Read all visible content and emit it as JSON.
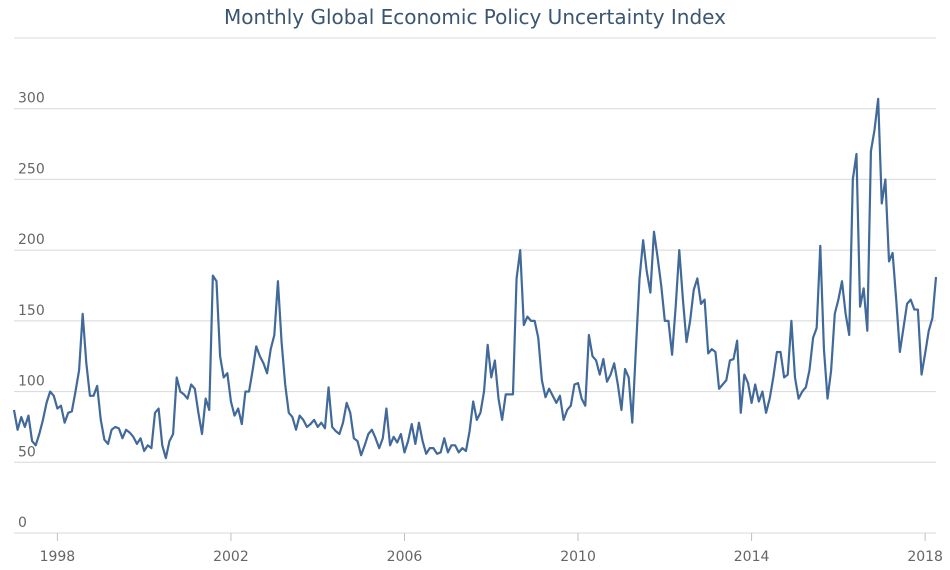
{
  "chart_data": {
    "type": "line",
    "title": "Monthly Global Economic Policy Uncertainty Index",
    "x": [
      1997,
      1997.083,
      1997.167,
      1997.25,
      1997.333,
      1997.417,
      1997.5,
      1997.583,
      1997.667,
      1997.75,
      1997.833,
      1997.917,
      1998,
      1998.083,
      1998.167,
      1998.25,
      1998.333,
      1998.417,
      1998.5,
      1998.583,
      1998.667,
      1998.75,
      1998.833,
      1998.917,
      1999,
      1999.083,
      1999.167,
      1999.25,
      1999.333,
      1999.417,
      1999.5,
      1999.583,
      1999.667,
      1999.75,
      1999.833,
      1999.917,
      2000,
      2000.083,
      2000.167,
      2000.25,
      2000.333,
      2000.417,
      2000.5,
      2000.583,
      2000.667,
      2000.75,
      2000.833,
      2000.917,
      2001,
      2001.083,
      2001.167,
      2001.25,
      2001.333,
      2001.417,
      2001.5,
      2001.583,
      2001.667,
      2001.75,
      2001.833,
      2001.917,
      2002,
      2002.083,
      2002.167,
      2002.25,
      2002.333,
      2002.417,
      2002.5,
      2002.583,
      2002.667,
      2002.75,
      2002.833,
      2002.917,
      2003,
      2003.083,
      2003.167,
      2003.25,
      2003.333,
      2003.417,
      2003.5,
      2003.583,
      2003.667,
      2003.75,
      2003.833,
      2003.917,
      2004,
      2004.083,
      2004.167,
      2004.25,
      2004.333,
      2004.417,
      2004.5,
      2004.583,
      2004.667,
      2004.75,
      2004.833,
      2004.917,
      2005,
      2005.083,
      2005.167,
      2005.25,
      2005.333,
      2005.417,
      2005.5,
      2005.583,
      2005.667,
      2005.75,
      2005.833,
      2005.917,
      2006,
      2006.083,
      2006.167,
      2006.25,
      2006.333,
      2006.417,
      2006.5,
      2006.583,
      2006.667,
      2006.75,
      2006.833,
      2006.917,
      2007,
      2007.083,
      2007.167,
      2007.25,
      2007.333,
      2007.417,
      2007.5,
      2007.583,
      2007.667,
      2007.75,
      2007.833,
      2007.917,
      2008,
      2008.083,
      2008.167,
      2008.25,
      2008.333,
      2008.417,
      2008.5,
      2008.583,
      2008.667,
      2008.75,
      2008.833,
      2008.917,
      2009,
      2009.083,
      2009.167,
      2009.25,
      2009.333,
      2009.417,
      2009.5,
      2009.583,
      2009.667,
      2009.75,
      2009.833,
      2009.917,
      2010,
      2010.083,
      2010.167,
      2010.25,
      2010.333,
      2010.417,
      2010.5,
      2010.583,
      2010.667,
      2010.75,
      2010.833,
      2010.917,
      2011,
      2011.083,
      2011.167,
      2011.25,
      2011.333,
      2011.417,
      2011.5,
      2011.583,
      2011.667,
      2011.75,
      2011.833,
      2011.917,
      2012,
      2012.083,
      2012.167,
      2012.25,
      2012.333,
      2012.417,
      2012.5,
      2012.583,
      2012.667,
      2012.75,
      2012.833,
      2012.917,
      2013,
      2013.083,
      2013.167,
      2013.25,
      2013.333,
      2013.417,
      2013.5,
      2013.583,
      2013.667,
      2013.75,
      2013.833,
      2013.917,
      2014,
      2014.083,
      2014.167,
      2014.25,
      2014.333,
      2014.417,
      2014.5,
      2014.583,
      2014.667,
      2014.75,
      2014.833,
      2014.917,
      2015,
      2015.083,
      2015.167,
      2015.25,
      2015.333,
      2015.417,
      2015.5,
      2015.583,
      2015.667,
      2015.75,
      2015.833,
      2015.917,
      2016,
      2016.083,
      2016.167,
      2016.25,
      2016.333,
      2016.417,
      2016.5,
      2016.583,
      2016.667,
      2016.75,
      2016.833,
      2016.917,
      2017,
      2017.083,
      2017.167,
      2017.25,
      2017.333,
      2017.417,
      2017.5,
      2017.583,
      2017.667,
      2017.75,
      2017.833,
      2017.917,
      2018,
      2018.083,
      2018.167,
      2018.25
    ],
    "series": [
      {
        "color": "#41699a",
        "values": [
          87,
          73,
          82,
          75,
          83,
          65,
          62,
          70,
          80,
          92,
          100,
          97,
          88,
          90,
          78,
          85,
          86,
          100,
          115,
          155,
          120,
          97,
          97,
          104,
          80,
          66,
          63,
          73,
          75,
          74,
          67,
          73,
          71,
          68,
          63,
          67,
          58,
          62,
          60,
          85,
          88,
          62,
          53,
          65,
          70,
          110,
          100,
          98,
          95,
          105,
          102,
          85,
          70,
          95,
          87,
          182,
          178,
          125,
          110,
          113,
          93,
          83,
          88,
          77,
          100,
          100,
          115,
          132,
          125,
          120,
          113,
          130,
          140,
          178,
          135,
          105,
          85,
          82,
          73,
          83,
          80,
          75,
          77,
          80,
          75,
          78,
          74,
          103,
          75,
          72,
          70,
          78,
          92,
          85,
          67,
          65,
          55,
          62,
          70,
          73,
          67,
          60,
          67,
          88,
          62,
          68,
          64,
          70,
          57,
          65,
          77,
          63,
          78,
          65,
          56,
          60,
          60,
          56,
          57,
          67,
          57,
          62,
          62,
          57,
          60,
          58,
          72,
          93,
          80,
          85,
          100,
          133,
          110,
          122,
          95,
          80,
          98,
          98,
          98,
          180,
          200,
          147,
          153,
          150,
          150,
          138,
          108,
          96,
          102,
          97,
          92,
          97,
          80,
          87,
          90,
          105,
          106,
          95,
          90,
          140,
          125,
          122,
          112,
          123,
          107,
          112,
          120,
          105,
          87,
          116,
          110,
          78,
          130,
          180,
          207,
          185,
          170,
          213,
          195,
          175,
          150,
          150,
          126,
          160,
          200,
          165,
          135,
          150,
          172,
          180,
          162,
          165,
          127,
          130,
          128,
          102,
          105,
          108,
          122,
          123,
          136,
          85,
          112,
          106,
          92,
          105,
          93,
          100,
          85,
          95,
          110,
          128,
          128,
          110,
          112,
          150,
          110,
          95,
          100,
          103,
          115,
          138,
          145,
          203,
          130,
          95,
          115,
          155,
          165,
          178,
          155,
          140,
          250,
          268,
          160,
          173,
          143,
          270,
          285,
          307,
          233,
          250,
          192,
          198,
          165,
          128,
          145,
          162,
          165,
          158,
          158,
          112,
          127,
          143,
          152,
          181
        ]
      }
    ],
    "xlim": [
      1997,
      2018.25
    ],
    "xticks": [
      1998,
      2002,
      2006,
      2010,
      2014,
      2018
    ],
    "ylim": [
      0,
      350
    ],
    "yticks": [
      0,
      50,
      100,
      150,
      200,
      250,
      300
    ],
    "grid": true
  }
}
